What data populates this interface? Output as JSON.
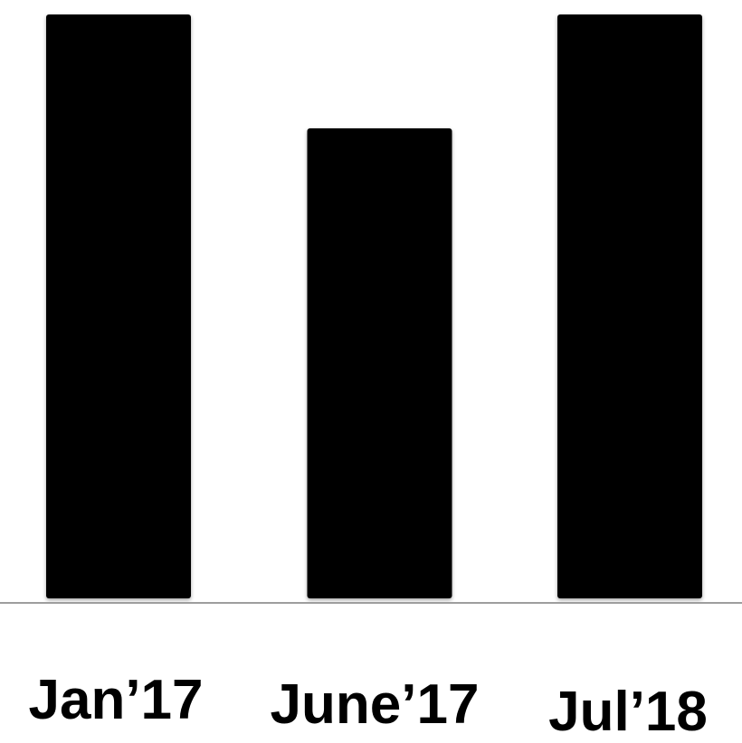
{
  "chart_data": {
    "type": "bar",
    "categories": [
      "Jan’17",
      "June’17",
      "Jul’18"
    ],
    "values": [
      100,
      80.5,
      100
    ],
    "title": "",
    "xlabel": "",
    "ylabel": "",
    "ylim": [
      0,
      100
    ],
    "grid": false,
    "legend": "none",
    "bar_color": "#000000",
    "axis_color": "#9e9e9e"
  }
}
